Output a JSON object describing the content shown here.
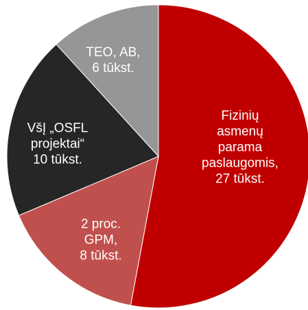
{
  "chart_data": {
    "type": "pie",
    "categories": [
      "Fizinių asmenų parama paslaugomis,",
      "2 proc. GPM,",
      "VšĮ „OSFL projektai“",
      "TEO, AB,"
    ],
    "values": [
      27,
      8,
      10,
      6
    ],
    "value_labels": [
      "27 tūkst.",
      "8 tūkst.",
      "10 tūkst.",
      "6 tūkst."
    ],
    "colors": [
      "#c00000",
      "#c0504d",
      "#262626",
      "#969696"
    ]
  }
}
